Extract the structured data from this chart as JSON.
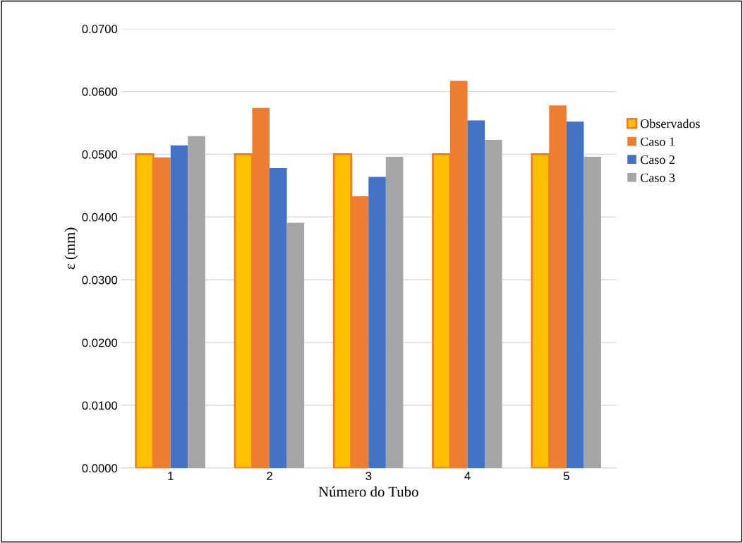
{
  "chart_data": {
    "type": "bar",
    "xlabel": "Número do Tubo",
    "ylabel": "ε (mm)",
    "categories": [
      "1",
      "2",
      "3",
      "4",
      "5"
    ],
    "series": [
      {
        "name": "Observados",
        "color": "#ffc000",
        "values": [
          0.05,
          0.05,
          0.05,
          0.05,
          0.05
        ]
      },
      {
        "name": "Caso 1",
        "color": "#ed7d31",
        "values": [
          0.0495,
          0.0574,
          0.0433,
          0.0617,
          0.0578
        ]
      },
      {
        "name": "Caso 2",
        "color": "#4472c4",
        "values": [
          0.0514,
          0.0478,
          0.0464,
          0.0554,
          0.0552
        ]
      },
      {
        "name": "Caso 3",
        "color": "#a5a5a5",
        "values": [
          0.0529,
          0.0391,
          0.0496,
          0.0523,
          0.0496
        ]
      }
    ],
    "ylim": [
      0,
      0.07
    ],
    "yticks": [
      {
        "value": 0,
        "label": "0.0000"
      },
      {
        "value": 0.01,
        "label": "0.0100"
      },
      {
        "value": 0.02,
        "label": "0.0200"
      },
      {
        "value": 0.03,
        "label": "0.0300"
      },
      {
        "value": 0.04,
        "label": "0.0400"
      },
      {
        "value": 0.05,
        "label": "0.0500"
      },
      {
        "value": 0.06,
        "label": "0.0600"
      },
      {
        "value": 0.07,
        "label": "0.0700"
      }
    ],
    "grid": "y",
    "legend": "right"
  }
}
